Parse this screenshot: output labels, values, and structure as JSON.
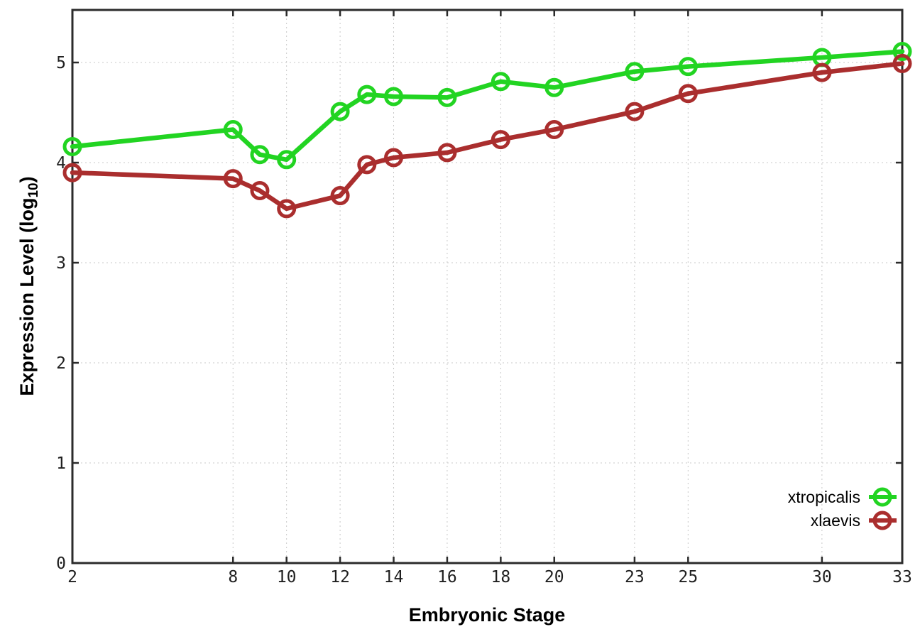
{
  "chart_data": {
    "type": "line",
    "title": "",
    "xlabel": "Embryonic Stage",
    "ylabel": "Expression Level (log10)",
    "ylabel_parts": {
      "prefix": "Expression Level (log",
      "sub": "10",
      "suffix": ")"
    },
    "x": [
      2,
      8,
      9,
      10,
      12,
      13,
      14,
      16,
      18,
      20,
      23,
      25,
      30,
      33
    ],
    "xticks": [
      2,
      8,
      10,
      12,
      14,
      16,
      18,
      20,
      23,
      25,
      30,
      33
    ],
    "yticks": [
      0,
      1,
      2,
      3,
      4,
      5
    ],
    "xlim": [
      2,
      33
    ],
    "ylim": [
      0,
      5.525
    ],
    "grid": true,
    "legend_position": "bottom-right-inside",
    "marker": "open-circle",
    "series": [
      {
        "name": "xtropicalis",
        "color": "#22d422",
        "values": [
          4.16,
          4.33,
          4.08,
          4.03,
          4.51,
          4.68,
          4.66,
          4.65,
          4.81,
          4.75,
          4.91,
          4.96,
          5.05,
          5.11
        ]
      },
      {
        "name": "xlaevis",
        "color": "#aa2e2e",
        "values": [
          3.9,
          3.84,
          3.72,
          3.54,
          3.67,
          3.98,
          4.05,
          4.1,
          4.23,
          4.33,
          4.51,
          4.69,
          4.9,
          4.99
        ]
      }
    ],
    "axis_color": "#2b2b2b",
    "grid_color": "#c8c8c8"
  }
}
